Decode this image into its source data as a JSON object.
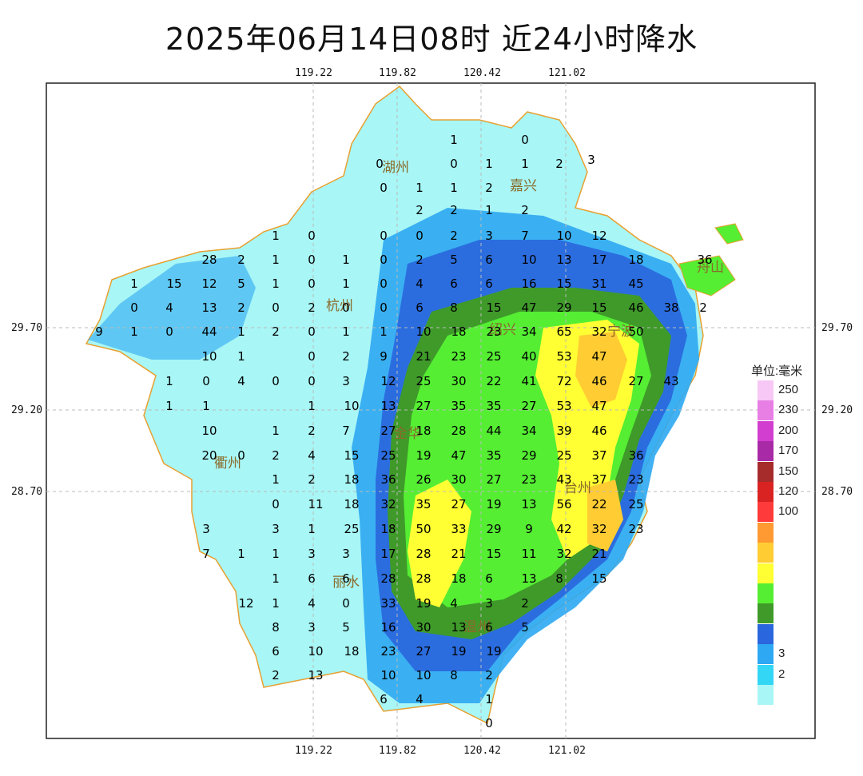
{
  "title": "2025年06月14日08时  近24小时降水",
  "axes": {
    "lon_top": [
      "119.22",
      "119.82",
      "120.42",
      "121.02"
    ],
    "lon_bottom": [
      "119.22",
      "119.82",
      "120.42",
      "121.02"
    ],
    "lat_left": [
      "29.70",
      "29.20",
      "28.70"
    ],
    "lat_right": [
      "29.70",
      "29.20",
      "28.70"
    ]
  },
  "cities": [
    "湖州",
    "嘉兴",
    "杭州",
    "宁波",
    "衢州",
    "金华",
    "绍兴",
    "台州",
    "丽水",
    "温州",
    "舟山"
  ],
  "legend": {
    "title": "单位:毫米",
    "levels": [
      {
        "label": "250",
        "color": "#f7c8f5"
      },
      {
        "label": "230",
        "color": "#e77fe4"
      },
      {
        "label": "200",
        "color": "#d23ed0"
      },
      {
        "label": "170",
        "color": "#a82aa6"
      },
      {
        "label": "150",
        "color": "#a62b2b"
      },
      {
        "label": "120",
        "color": "#d92323"
      },
      {
        "label": "100",
        "color": "#ff3a3a"
      },
      {
        "label": "",
        "color": "#ff9a33"
      },
      {
        "label": "",
        "color": "#ffcc33"
      },
      {
        "label": "",
        "color": "#ffff33"
      },
      {
        "label": "",
        "color": "#55ee33"
      },
      {
        "label": "",
        "color": "#3f9a2a"
      },
      {
        "label": "",
        "color": "#2a66dd"
      },
      {
        "label": "3",
        "color": "#2ea8f2"
      },
      {
        "label": "2",
        "color": "#33d6f5"
      },
      {
        "label": "",
        "color": "#a8f6f6"
      }
    ]
  },
  "station_values": [
    {
      "v": "0"
    },
    {
      "v": "0"
    },
    {
      "v": "1"
    },
    {
      "v": "0"
    },
    {
      "v": "1"
    },
    {
      "v": "1"
    },
    {
      "v": "2"
    },
    {
      "v": "0"
    },
    {
      "v": "1"
    },
    {
      "v": "2"
    },
    {
      "v": "1"
    },
    {
      "v": "2"
    },
    {
      "v": "1"
    },
    {
      "v": "2"
    },
    {
      "v": "2"
    },
    {
      "v": "3"
    },
    {
      "v": "1"
    },
    {
      "v": "0"
    },
    {
      "v": "0"
    },
    {
      "v": "0"
    },
    {
      "v": "2"
    },
    {
      "v": "3"
    },
    {
      "v": "7"
    },
    {
      "v": "10"
    },
    {
      "v": "12"
    },
    {
      "v": "28"
    },
    {
      "v": "2"
    },
    {
      "v": "1"
    },
    {
      "v": "0"
    },
    {
      "v": "1"
    },
    {
      "v": "0"
    },
    {
      "v": "2"
    },
    {
      "v": "5"
    },
    {
      "v": "6"
    },
    {
      "v": "10"
    },
    {
      "v": "13"
    },
    {
      "v": "17"
    },
    {
      "v": "18"
    },
    {
      "v": "36"
    },
    {
      "v": "1"
    },
    {
      "v": "15"
    },
    {
      "v": "12"
    },
    {
      "v": "5"
    },
    {
      "v": "1"
    },
    {
      "v": "0"
    },
    {
      "v": "1"
    },
    {
      "v": "0"
    },
    {
      "v": "4"
    },
    {
      "v": "6"
    },
    {
      "v": "6"
    },
    {
      "v": "16"
    },
    {
      "v": "15"
    },
    {
      "v": "31"
    },
    {
      "v": "45"
    },
    {
      "v": "0"
    },
    {
      "v": "4"
    },
    {
      "v": "13"
    },
    {
      "v": "2"
    },
    {
      "v": "0"
    },
    {
      "v": "2"
    },
    {
      "v": "0"
    },
    {
      "v": "0"
    },
    {
      "v": "6"
    },
    {
      "v": "8"
    },
    {
      "v": "15"
    },
    {
      "v": "47"
    },
    {
      "v": "29"
    },
    {
      "v": "15"
    },
    {
      "v": "46"
    },
    {
      "v": "38"
    },
    {
      "v": "2"
    },
    {
      "v": "9"
    },
    {
      "v": "1"
    },
    {
      "v": "0"
    },
    {
      "v": "44"
    },
    {
      "v": "1"
    },
    {
      "v": "2"
    },
    {
      "v": "0"
    },
    {
      "v": "1"
    },
    {
      "v": "1"
    },
    {
      "v": "10"
    },
    {
      "v": "18"
    },
    {
      "v": "23"
    },
    {
      "v": "34"
    },
    {
      "v": "65"
    },
    {
      "v": "32"
    },
    {
      "v": "50"
    },
    {
      "v": "10"
    },
    {
      "v": "1"
    },
    {
      "v": "0"
    },
    {
      "v": "2"
    },
    {
      "v": "9"
    },
    {
      "v": "21"
    },
    {
      "v": "23"
    },
    {
      "v": "25"
    },
    {
      "v": "40"
    },
    {
      "v": "53"
    },
    {
      "v": "47"
    },
    {
      "v": "1"
    },
    {
      "v": "0"
    },
    {
      "v": "4"
    },
    {
      "v": "0"
    },
    {
      "v": "0"
    },
    {
      "v": "3"
    },
    {
      "v": "12"
    },
    {
      "v": "25"
    },
    {
      "v": "30"
    },
    {
      "v": "22"
    },
    {
      "v": "41"
    },
    {
      "v": "72"
    },
    {
      "v": "46"
    },
    {
      "v": "27"
    },
    {
      "v": "43"
    },
    {
      "v": "1"
    },
    {
      "v": "1"
    },
    {
      "v": "1"
    },
    {
      "v": "10"
    },
    {
      "v": "13"
    },
    {
      "v": "27"
    },
    {
      "v": "35"
    },
    {
      "v": "35"
    },
    {
      "v": "27"
    },
    {
      "v": "53"
    },
    {
      "v": "47"
    },
    {
      "v": "10"
    },
    {
      "v": "1"
    },
    {
      "v": "2"
    },
    {
      "v": "7"
    },
    {
      "v": "27"
    },
    {
      "v": "18"
    },
    {
      "v": "28"
    },
    {
      "v": "44"
    },
    {
      "v": "34"
    },
    {
      "v": "39"
    },
    {
      "v": "46"
    },
    {
      "v": "20"
    },
    {
      "v": "0"
    },
    {
      "v": "2"
    },
    {
      "v": "4"
    },
    {
      "v": "15"
    },
    {
      "v": "25"
    },
    {
      "v": "19"
    },
    {
      "v": "47"
    },
    {
      "v": "35"
    },
    {
      "v": "29"
    },
    {
      "v": "25"
    },
    {
      "v": "37"
    },
    {
      "v": "36"
    },
    {
      "v": "1"
    },
    {
      "v": "2"
    },
    {
      "v": "18"
    },
    {
      "v": "36"
    },
    {
      "v": "26"
    },
    {
      "v": "30"
    },
    {
      "v": "27"
    },
    {
      "v": "23"
    },
    {
      "v": "43"
    },
    {
      "v": "37"
    },
    {
      "v": "23"
    },
    {
      "v": "0"
    },
    {
      "v": "11"
    },
    {
      "v": "18"
    },
    {
      "v": "32"
    },
    {
      "v": "35"
    },
    {
      "v": "27"
    },
    {
      "v": "19"
    },
    {
      "v": "13"
    },
    {
      "v": "56"
    },
    {
      "v": "22"
    },
    {
      "v": "25"
    },
    {
      "v": "3"
    },
    {
      "v": "3"
    },
    {
      "v": "1"
    },
    {
      "v": "25"
    },
    {
      "v": "18"
    },
    {
      "v": "50"
    },
    {
      "v": "33"
    },
    {
      "v": "29"
    },
    {
      "v": "9"
    },
    {
      "v": "42"
    },
    {
      "v": "32"
    },
    {
      "v": "23"
    },
    {
      "v": "7"
    },
    {
      "v": "1"
    },
    {
      "v": "1"
    },
    {
      "v": "3"
    },
    {
      "v": "3"
    },
    {
      "v": "17"
    },
    {
      "v": "28"
    },
    {
      "v": "21"
    },
    {
      "v": "15"
    },
    {
      "v": "11"
    },
    {
      "v": "32"
    },
    {
      "v": "21"
    },
    {
      "v": "1"
    },
    {
      "v": "6"
    },
    {
      "v": "6"
    },
    {
      "v": "28"
    },
    {
      "v": "28"
    },
    {
      "v": "18"
    },
    {
      "v": "6"
    },
    {
      "v": "13"
    },
    {
      "v": "8"
    },
    {
      "v": "15"
    },
    {
      "v": "12"
    },
    {
      "v": "1"
    },
    {
      "v": "4"
    },
    {
      "v": "0"
    },
    {
      "v": "33"
    },
    {
      "v": "19"
    },
    {
      "v": "4"
    },
    {
      "v": "3"
    },
    {
      "v": "2"
    },
    {
      "v": "8"
    },
    {
      "v": "3"
    },
    {
      "v": "5"
    },
    {
      "v": "16"
    },
    {
      "v": "30"
    },
    {
      "v": "13"
    },
    {
      "v": "6"
    },
    {
      "v": "5"
    },
    {
      "v": "6"
    },
    {
      "v": "10"
    },
    {
      "v": "18"
    },
    {
      "v": "23"
    },
    {
      "v": "27"
    },
    {
      "v": "19"
    },
    {
      "v": "19"
    },
    {
      "v": "2"
    },
    {
      "v": "13"
    },
    {
      "v": "10"
    },
    {
      "v": "10"
    },
    {
      "v": "8"
    },
    {
      "v": "2"
    },
    {
      "v": "6"
    },
    {
      "v": "4"
    },
    {
      "v": "1"
    },
    {
      "v": "0"
    }
  ]
}
